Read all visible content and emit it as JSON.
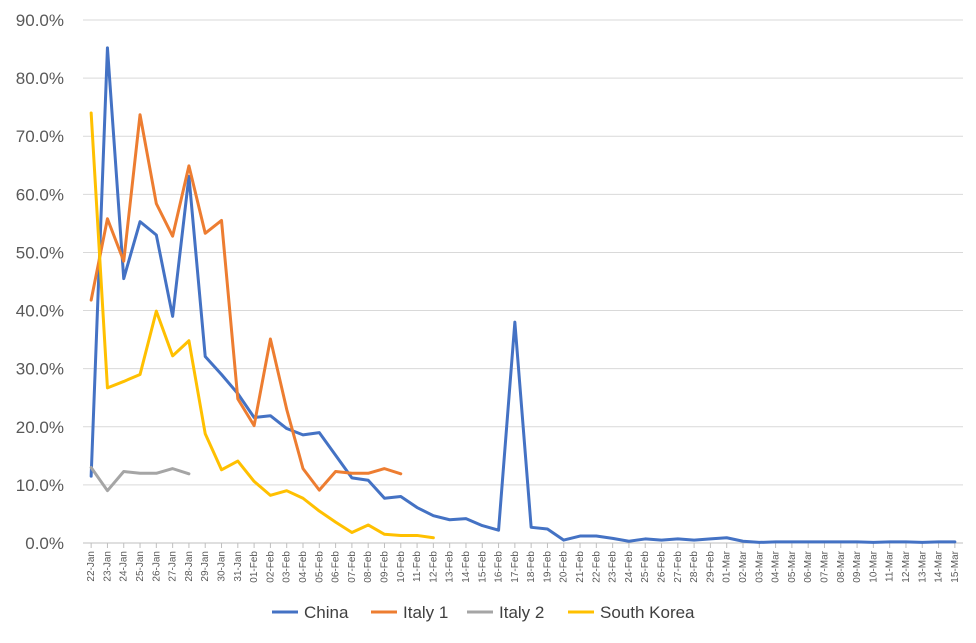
{
  "chart_data": {
    "type": "line",
    "title": "",
    "xlabel": "",
    "ylabel": "",
    "ylim": [
      0,
      90
    ],
    "y_tick_format": "percent_one_decimal",
    "y_ticks": [
      "0.0%",
      "10.0%",
      "20.0%",
      "30.0%",
      "40.0%",
      "50.0%",
      "60.0%",
      "70.0%",
      "80.0%",
      "90.0%"
    ],
    "grid": "horizontal",
    "legend_position": "bottom",
    "categories": [
      "22-Jan",
      "23-Jan",
      "24-Jan",
      "25-Jan",
      "26-Jan",
      "27-Jan",
      "28-Jan",
      "29-Jan",
      "30-Jan",
      "31-Jan",
      "01-Feb",
      "02-Feb",
      "03-Feb",
      "04-Feb",
      "05-Feb",
      "06-Feb",
      "07-Feb",
      "08-Feb",
      "09-Feb",
      "10-Feb",
      "11-Feb",
      "12-Feb",
      "13-Feb",
      "14-Feb",
      "15-Feb",
      "16-Feb",
      "17-Feb",
      "18-Feb",
      "19-Feb",
      "20-Feb",
      "21-Feb",
      "22-Feb",
      "23-Feb",
      "24-Feb",
      "25-Feb",
      "26-Feb",
      "27-Feb",
      "28-Feb",
      "29-Feb",
      "01-Mar",
      "02-Mar",
      "03-Mar",
      "04-Mar",
      "05-Mar",
      "06-Mar",
      "07-Mar",
      "08-Mar",
      "09-Mar",
      "10-Mar",
      "11-Mar",
      "12-Mar",
      "13-Mar",
      "14-Mar",
      "15-Mar"
    ],
    "series": [
      {
        "name": "China",
        "color": "#4472C4",
        "values": [
          11.5,
          85.2,
          45.5,
          55.3,
          53.0,
          39.0,
          63.1,
          32.1,
          29.0,
          25.7,
          21.6,
          21.9,
          19.7,
          18.6,
          19.0,
          15.1,
          11.2,
          10.8,
          7.7,
          8.0,
          6.1,
          4.7,
          4.0,
          4.2,
          3.0,
          2.2,
          38.0,
          2.7,
          2.4,
          0.5,
          1.2,
          1.2,
          0.8,
          0.3,
          0.7,
          0.5,
          0.7,
          0.5,
          0.7,
          0.9,
          0.3,
          0.1,
          0.2,
          0.2,
          0.2,
          0.2,
          0.2,
          0.2,
          0.1,
          0.2,
          0.2,
          0.1,
          0.2,
          0.2
        ]
      },
      {
        "name": "Italy 1",
        "color": "#ED7D31",
        "values": [
          41.8,
          55.8,
          48.5,
          73.7,
          58.4,
          52.8,
          64.9,
          53.3,
          55.5,
          24.8,
          20.2,
          35.1,
          23.0,
          12.8,
          9.1,
          12.3,
          12.0,
          12.0,
          12.8,
          11.9,
          null,
          null,
          null,
          null,
          null,
          null,
          null,
          null,
          null,
          null,
          null,
          null,
          null,
          null,
          null,
          null,
          null,
          null,
          null,
          null,
          null,
          null,
          null,
          null,
          null,
          null,
          null,
          null,
          null,
          null,
          null,
          null,
          null,
          null
        ]
      },
      {
        "name": "Italy 2",
        "color": "#A5A5A5",
        "values": [
          13.0,
          9.0,
          12.3,
          12.0,
          12.0,
          12.8,
          11.9,
          null,
          null,
          null,
          null,
          null,
          null,
          null,
          null,
          null,
          null,
          null,
          null,
          null,
          null,
          null,
          null,
          null,
          null,
          null,
          null,
          null,
          null,
          null,
          null,
          null,
          null,
          null,
          null,
          null,
          null,
          null,
          null,
          null,
          null,
          null,
          null,
          null,
          null,
          null,
          null,
          null,
          null,
          null,
          null,
          null,
          null,
          null
        ]
      },
      {
        "name": "South Korea",
        "color": "#FFC000",
        "values": [
          74.0,
          26.7,
          27.8,
          29.0,
          39.9,
          32.2,
          34.8,
          18.8,
          12.6,
          14.1,
          10.6,
          8.2,
          9.0,
          7.7,
          5.5,
          3.6,
          1.8,
          3.1,
          1.5,
          1.3,
          1.3,
          0.9,
          null,
          null,
          null,
          null,
          null,
          null,
          null,
          null,
          null,
          null,
          null,
          null,
          null,
          null,
          null,
          null,
          null,
          null,
          null,
          null,
          null,
          null,
          null,
          null,
          null,
          null,
          null,
          null,
          null,
          null,
          null,
          null
        ]
      }
    ]
  }
}
